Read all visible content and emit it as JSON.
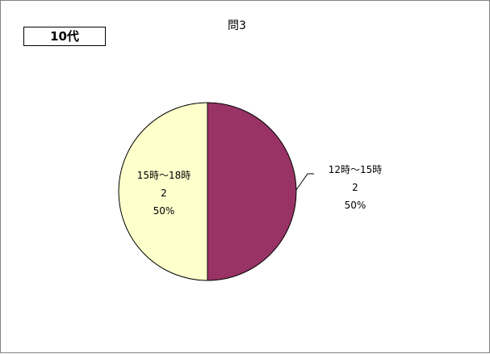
{
  "group_label": "10代",
  "chart_data": {
    "type": "pie",
    "title": "問3",
    "slices": [
      {
        "label": "12時～15時",
        "value": 2,
        "percent": "50%",
        "color": "#993366"
      },
      {
        "label": "15時～18時",
        "value": 2,
        "percent": "50%",
        "color": "#ffffcc"
      }
    ],
    "legend": "none"
  }
}
